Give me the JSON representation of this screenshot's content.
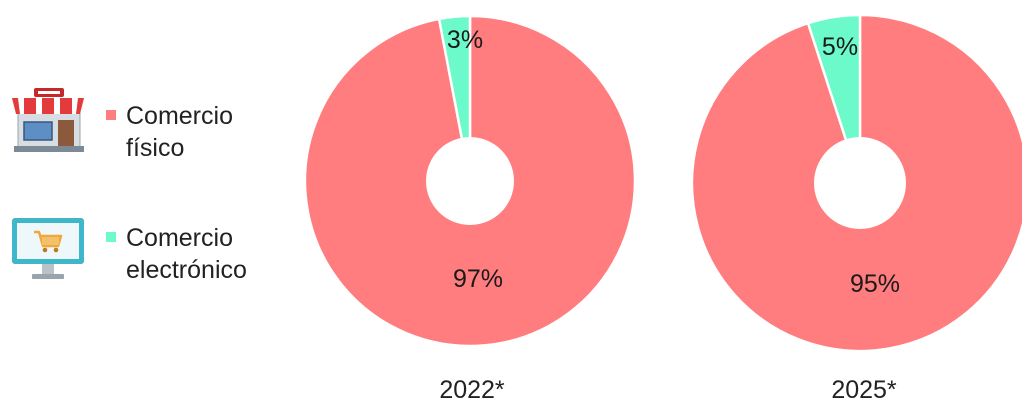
{
  "colors": {
    "comercio_fisico": "#ff7d7f",
    "comercio_electronico": "#6cfacb",
    "background": "#ffffff"
  },
  "legend": {
    "items": [
      {
        "label_line1": "Comercio",
        "label_line2": "físico",
        "icon": "store-icon",
        "color_key": "comercio_fisico"
      },
      {
        "label_line1": "Comercio",
        "label_line2": "electrónico",
        "icon": "computer-cart-icon",
        "color_key": "comercio_electronico"
      }
    ]
  },
  "chart_data": [
    {
      "type": "pie",
      "year_label": "2022*",
      "slices": [
        {
          "name": "Comercio físico",
          "value": 97,
          "label": "97%"
        },
        {
          "name": "Comercio electrónico",
          "value": 3,
          "label": "3%"
        }
      ]
    },
    {
      "type": "pie",
      "year_label": "2025*",
      "slices": [
        {
          "name": "Comercio físico",
          "value": 95,
          "label": "95%"
        },
        {
          "name": "Comercio electrónico",
          "value": 5,
          "label": "5%"
        }
      ]
    }
  ]
}
